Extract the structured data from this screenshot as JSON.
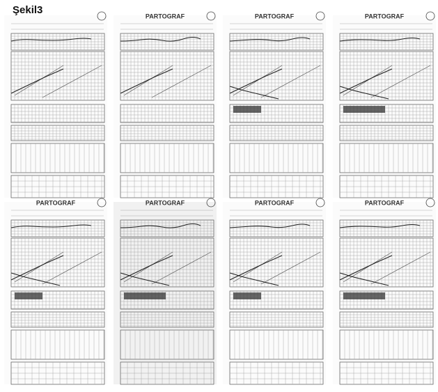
{
  "figure_label": "Şekil3",
  "panels": [
    {
      "title": null
    },
    {
      "title": "PARTOGRAF"
    },
    {
      "title": "PARTOGRAF"
    },
    {
      "title": "PARTOGRAF"
    },
    {
      "title": "PARTOGRAF"
    },
    {
      "title": "PARTOGRAF"
    },
    {
      "title": "PARTOGRAF"
    },
    {
      "title": "PARTOGRAF"
    }
  ]
}
